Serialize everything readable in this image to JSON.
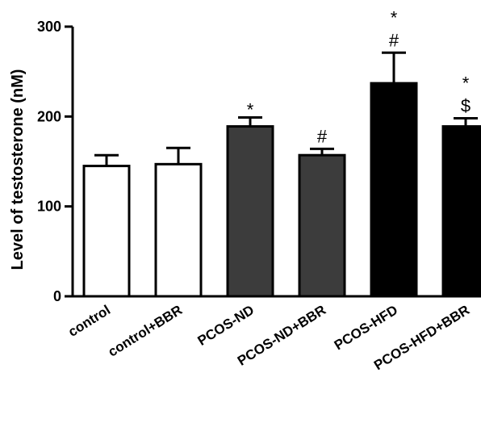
{
  "chart_data": {
    "type": "bar",
    "ylabel": "Level of testosterone (nM)",
    "xlabel": "",
    "ylim": [
      0,
      300
    ],
    "yticks": [
      "0",
      "100",
      "200",
      "300"
    ],
    "categories": [
      "control",
      "control+BBR",
      "PCOS-ND",
      "PCOS-ND+BBR",
      "PCOS-HFD",
      "PCOS-HFD+BBR"
    ],
    "values": [
      145,
      147,
      189,
      157,
      237,
      189
    ],
    "errors": [
      12,
      18,
      10,
      7,
      34,
      9
    ],
    "fills": [
      "#ffffff",
      "#ffffff",
      "#3c3c3c",
      "#3c3c3c",
      "#000000",
      "#000000"
    ],
    "annotations": [
      [],
      [],
      [
        "*"
      ],
      [
        "#"
      ],
      [
        "*",
        "#"
      ],
      [
        "*",
        "$"
      ]
    ],
    "grid": false,
    "legend": "none"
  }
}
